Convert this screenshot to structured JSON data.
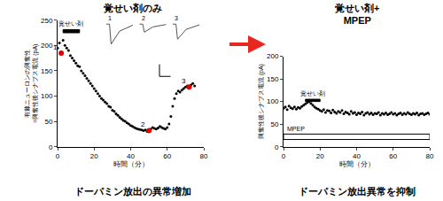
{
  "chart_data": [
    {
      "type": "scatter",
      "title": "覚せい剤のみ",
      "x_label": "時間（分）",
      "y_label": "有棘ニューロンの興奮性\n=興奮性後シナプス電流 (pA)",
      "caption": "ドーパミン放出の異常増加",
      "xlim": [
        0,
        80
      ],
      "xticks": [
        0,
        20,
        40,
        60,
        80
      ],
      "ylim": [
        0,
        250
      ],
      "yticks": [
        0,
        50,
        100,
        150,
        200,
        250
      ],
      "color": "#000000",
      "marker": "circle",
      "x": [
        0,
        1,
        2,
        3,
        4,
        5,
        6,
        7,
        8,
        9,
        10,
        11,
        12,
        13,
        14,
        15,
        16,
        17,
        18,
        19,
        20,
        21,
        22,
        23,
        24,
        25,
        26,
        27,
        28,
        29,
        30,
        31,
        32,
        33,
        34,
        35,
        36,
        37,
        38,
        39,
        40,
        41,
        42,
        43,
        44,
        45,
        46,
        47,
        48,
        49,
        50,
        51,
        52,
        53,
        54,
        55,
        56,
        57,
        58,
        59,
        60,
        61,
        62,
        63,
        64,
        65,
        66,
        67,
        68,
        69,
        70,
        71,
        72,
        73,
        74,
        75
      ],
      "values": [
        195,
        205,
        185,
        210,
        200,
        195,
        190,
        180,
        175,
        170,
        165,
        160,
        158,
        150,
        145,
        140,
        135,
        130,
        125,
        120,
        115,
        110,
        105,
        100,
        95,
        92,
        88,
        85,
        80,
        78,
        72,
        70,
        65,
        62,
        58,
        55,
        52,
        50,
        47,
        45,
        42,
        40,
        38,
        36,
        35,
        34,
        33,
        32,
        33,
        30,
        32,
        35,
        38,
        36,
        35,
        37,
        40,
        38,
        36,
        35,
        38,
        45,
        60,
        80,
        95,
        105,
        110,
        108,
        112,
        115,
        118,
        120,
        118,
        122,
        125,
        120
      ],
      "highlights": {
        "x": [
          2,
          50,
          72
        ],
        "values": [
          185,
          32,
          118
        ],
        "labels": [
          "1",
          "2",
          "3"
        ],
        "color": "#e00000"
      },
      "drug": {
        "label": "覚せい剤",
        "x": [
          3,
          12
        ]
      },
      "inset_labels": [
        "1",
        "2",
        "3"
      ]
    },
    {
      "type": "scatter",
      "title": "覚せい剤+\nMPEP",
      "x_label": "時間（分）",
      "y_label": "興奮性後シナプス電流 (pA)",
      "caption": "ドーパミン放出異常を抑制",
      "xlim": [
        0,
        80
      ],
      "xticks": [
        0,
        20,
        40,
        60,
        80
      ],
      "ylim": [
        0,
        200
      ],
      "yticks": [
        0,
        50,
        100,
        150,
        200
      ],
      "color": "#000000",
      "marker": "circle",
      "x": [
        0,
        1,
        2,
        3,
        4,
        5,
        6,
        7,
        8,
        9,
        10,
        11,
        12,
        13,
        14,
        15,
        16,
        17,
        18,
        19,
        20,
        21,
        22,
        23,
        24,
        25,
        26,
        27,
        28,
        29,
        30,
        31,
        32,
        33,
        34,
        35,
        36,
        37,
        38,
        39,
        40,
        41,
        42,
        43,
        44,
        45,
        46,
        47,
        48,
        49,
        50,
        51,
        52,
        53,
        54,
        55,
        56,
        57,
        58,
        59,
        60,
        61,
        62,
        63,
        64,
        65,
        66,
        67,
        68,
        69,
        70,
        71,
        72,
        73,
        74,
        75,
        76,
        77,
        78,
        79,
        80
      ],
      "values": [
        85,
        88,
        82,
        90,
        86,
        84,
        88,
        83,
        87,
        85,
        89,
        92,
        95,
        98,
        100,
        96,
        92,
        88,
        85,
        83,
        80,
        78,
        82,
        76,
        80,
        79,
        75,
        81,
        77,
        74,
        78,
        76,
        80,
        73,
        77,
        75,
        72,
        78,
        74,
        76,
        71,
        75,
        73,
        77,
        70,
        74,
        76,
        72,
        75,
        71,
        74,
        73,
        76,
        70,
        74,
        72,
        75,
        71,
        73,
        76,
        72,
        74,
        70,
        73,
        75,
        71,
        74,
        72,
        76,
        73,
        71,
        74,
        72,
        75,
        70,
        73,
        74,
        71,
        73,
        75,
        72
      ],
      "drug": {
        "label": "覚せい剤",
        "x": [
          12,
          20
        ]
      },
      "blocker": {
        "label": "MPEP",
        "x": [
          0,
          80
        ]
      }
    }
  ]
}
